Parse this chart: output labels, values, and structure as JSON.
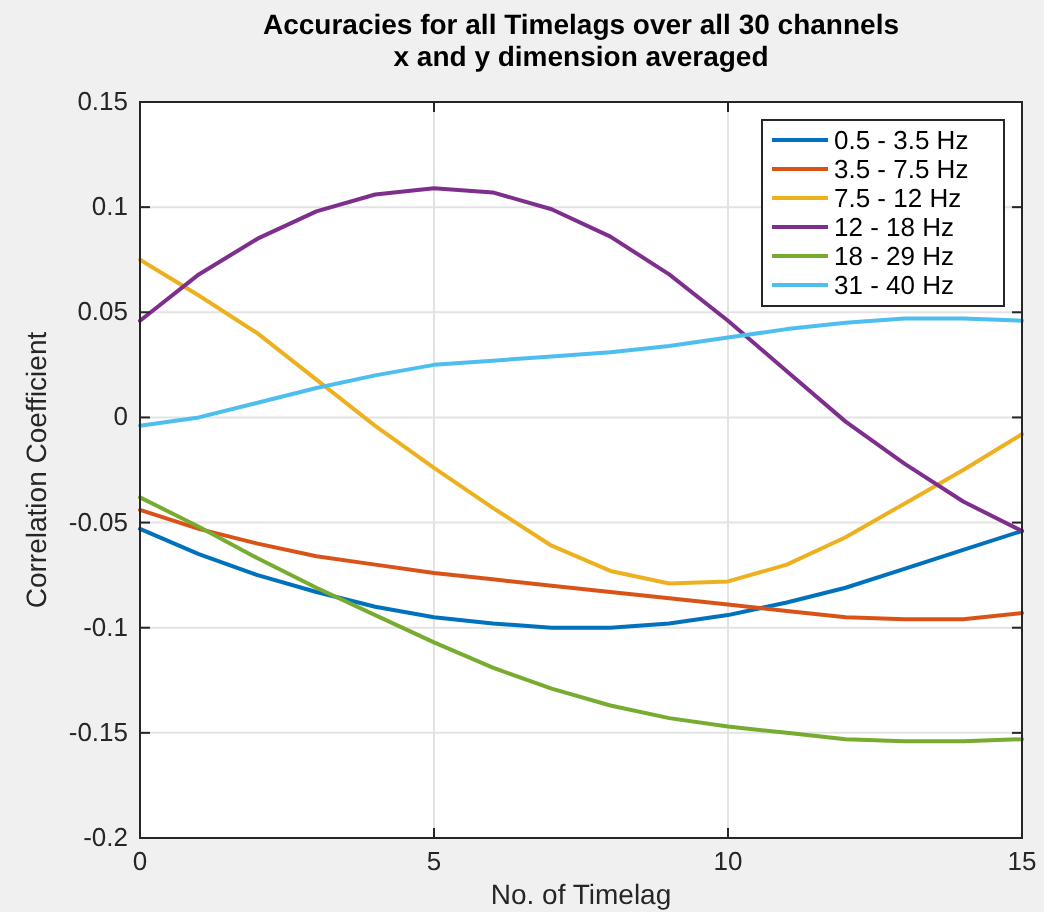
{
  "chart_data": {
    "type": "line",
    "title": "Accuracies for all Timelags over all 30  channels",
    "subtitle": "x and y dimension averaged",
    "xlabel": "No. of Timelag",
    "ylabel": "Correlation Coefficient",
    "x": [
      0,
      1,
      2,
      3,
      4,
      5,
      6,
      7,
      8,
      9,
      10,
      11,
      12,
      13,
      14,
      15
    ],
    "xlim": [
      0,
      15
    ],
    "xticks": [
      0,
      5,
      10,
      15
    ],
    "ylim": [
      -0.2,
      0.15
    ],
    "yticks": [
      {
        "value": -0.2,
        "label": "-0.2"
      },
      {
        "value": -0.15,
        "label": "-0.15"
      },
      {
        "value": -0.1,
        "label": "-0.1"
      },
      {
        "value": -0.05,
        "label": "-0.05"
      },
      {
        "value": 0,
        "label": "0"
      },
      {
        "value": 0.05,
        "label": "0.05"
      },
      {
        "value": 0.1,
        "label": "0.1"
      },
      {
        "value": 0.15,
        "label": "0.15"
      }
    ],
    "grid": true,
    "legend": "top right",
    "marker": "none",
    "line_style": "solid",
    "series": [
      {
        "name": "0.5 - 3.5 Hz",
        "color": "#0072bd",
        "values": [
          -0.053,
          -0.065,
          -0.075,
          -0.083,
          -0.09,
          -0.095,
          -0.098,
          -0.1,
          -0.1,
          -0.098,
          -0.094,
          -0.088,
          -0.081,
          -0.072,
          -0.063,
          -0.054
        ]
      },
      {
        "name": "3.5 - 7.5 Hz",
        "color": "#d95319",
        "values": [
          -0.044,
          -0.053,
          -0.06,
          -0.066,
          -0.07,
          -0.074,
          -0.077,
          -0.08,
          -0.083,
          -0.086,
          -0.089,
          -0.092,
          -0.095,
          -0.096,
          -0.096,
          -0.093
        ]
      },
      {
        "name": "7.5 - 12 Hz",
        "color": "#edb120",
        "values": [
          0.075,
          0.058,
          0.04,
          0.018,
          -0.004,
          -0.024,
          -0.043,
          -0.061,
          -0.073,
          -0.079,
          -0.078,
          -0.07,
          -0.057,
          -0.041,
          -0.025,
          -0.008
        ]
      },
      {
        "name": "12 - 18 Hz",
        "color": "#7e2f8e",
        "values": [
          0.046,
          0.068,
          0.085,
          0.098,
          0.106,
          0.109,
          0.107,
          0.099,
          0.086,
          0.068,
          0.046,
          0.022,
          -0.002,
          -0.022,
          -0.04,
          -0.054
        ]
      },
      {
        "name": "18 - 29 Hz",
        "color": "#77ac30",
        "values": [
          -0.038,
          -0.052,
          -0.067,
          -0.081,
          -0.094,
          -0.107,
          -0.119,
          -0.129,
          -0.137,
          -0.143,
          -0.147,
          -0.15,
          -0.153,
          -0.154,
          -0.154,
          -0.153
        ]
      },
      {
        "name": "31 - 40 Hz",
        "color": "#4dbeee",
        "values": [
          -0.004,
          0,
          0.007,
          0.014,
          0.02,
          0.025,
          0.027,
          0.029,
          0.031,
          0.034,
          0.038,
          0.042,
          0.045,
          0.047,
          0.047,
          0.046
        ]
      }
    ]
  }
}
